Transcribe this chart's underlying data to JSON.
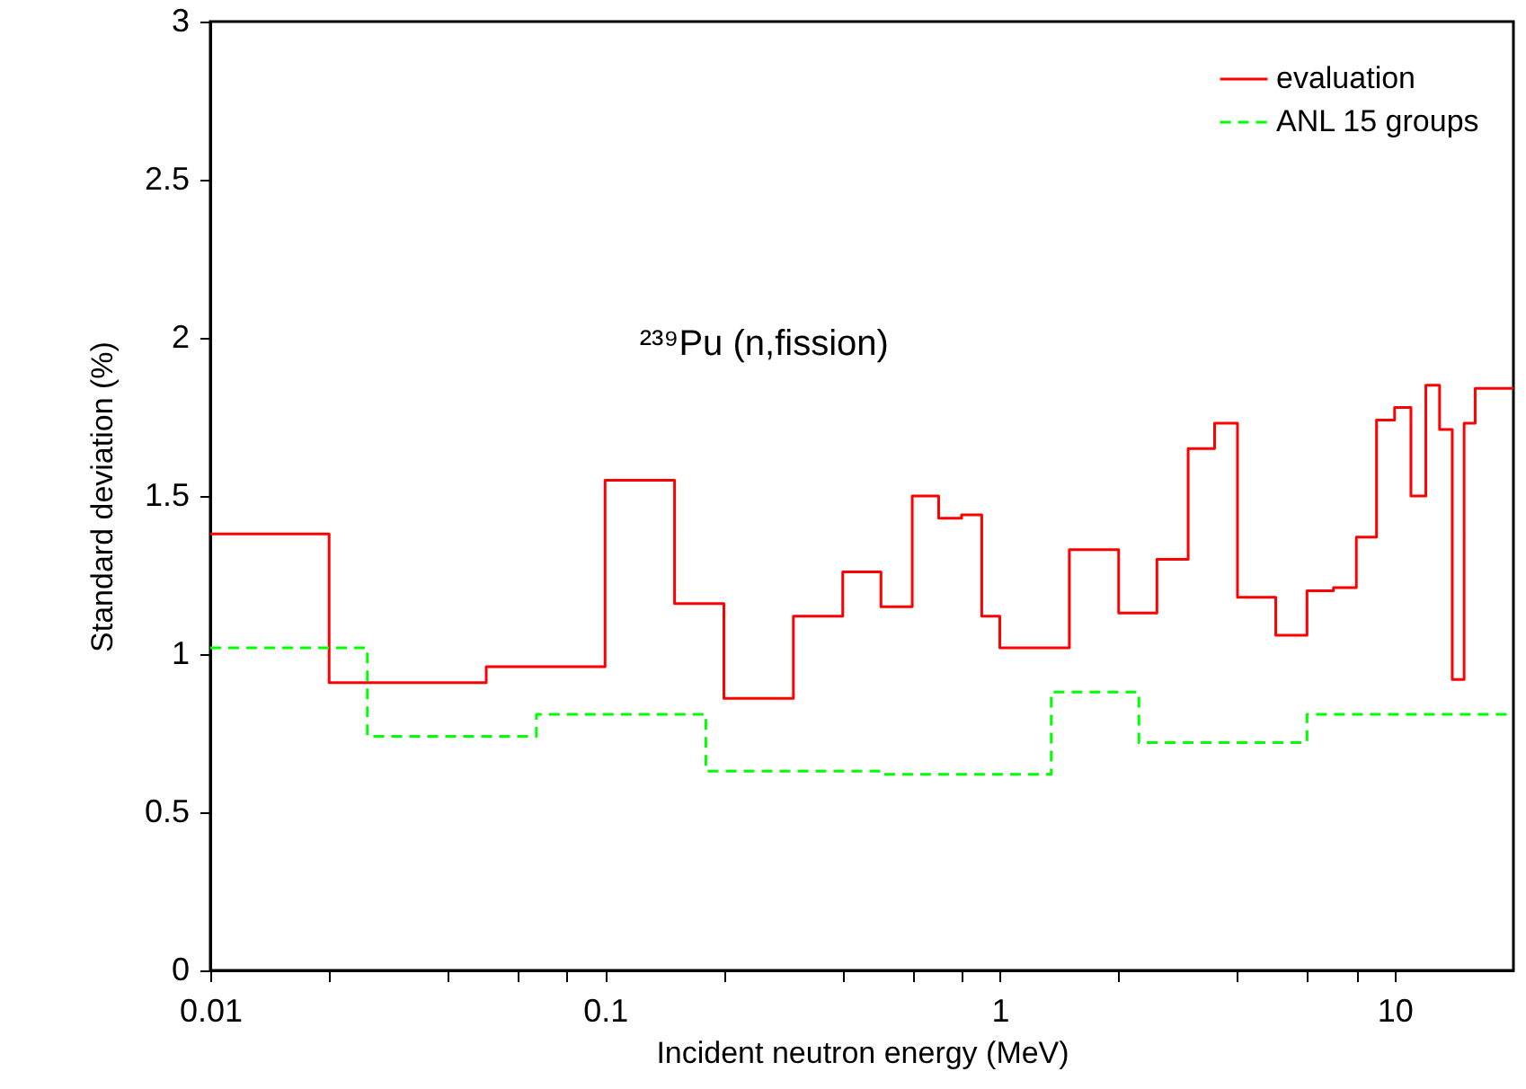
{
  "chart_data": {
    "type": "step",
    "xlabel": "Incident neutron energy (MeV)",
    "ylabel": "Standard deviation (%)",
    "annotations": [
      "²³⁹Pu (n,fission)"
    ],
    "log": "x",
    "xlim": [
      0.01,
      20
    ],
    "ylim": [
      0,
      3
    ],
    "xticks": [
      0.01,
      {
        "value": 0.02,
        "label": null
      },
      {
        "value": 0.04,
        "label": null
      },
      {
        "value": 0.06,
        "label": null
      },
      {
        "value": 0.08,
        "label": null
      },
      0.1,
      {
        "value": 0.2,
        "label": null
      },
      {
        "value": 0.4,
        "label": null
      },
      {
        "value": 0.6,
        "label": null
      },
      {
        "value": 0.8,
        "label": null
      },
      1,
      {
        "value": 2,
        "label": null
      },
      {
        "value": 4,
        "label": null
      },
      {
        "value": 6,
        "label": null
      },
      {
        "value": 8,
        "label": null
      },
      10
    ],
    "yticks": [
      0,
      0.5,
      1,
      1.5,
      2,
      2.5,
      3
    ],
    "grid": false,
    "legend": "top right",
    "marker": "none",
    "series": [
      {
        "name": "evaluation",
        "color": "#ff0000",
        "line_style": "solid",
        "x": [
          0.01,
          0.02,
          0.05,
          0.1,
          0.15,
          0.2,
          0.3,
          0.4,
          0.5,
          0.6,
          0.7,
          0.8,
          0.9,
          1.0,
          1.5,
          2.0,
          2.5,
          3.0,
          3.5,
          4.0,
          5.0,
          6.0,
          7.0,
          8.0,
          9.0,
          10,
          11,
          12,
          13,
          14,
          15,
          16,
          20
        ],
        "values": [
          1.38,
          0.91,
          0.96,
          1.55,
          1.16,
          0.86,
          1.12,
          1.26,
          1.15,
          1.5,
          1.43,
          1.44,
          1.12,
          1.02,
          1.33,
          1.13,
          1.3,
          1.65,
          1.73,
          1.18,
          1.06,
          1.2,
          1.21,
          1.37,
          1.74,
          1.78,
          1.5,
          1.85,
          1.71,
          0.92,
          1.73,
          1.84,
          1.84
        ]
      },
      {
        "name": "ANL 15 groups",
        "color": "#00ff00",
        "line_style": "dashed",
        "x": [
          0.01,
          0.025,
          0.067,
          0.18,
          0.5,
          1.35,
          2.25,
          6,
          20
        ],
        "values": [
          1.02,
          0.74,
          0.81,
          0.63,
          0.62,
          0.88,
          0.72,
          0.81,
          0.81
        ]
      }
    ]
  }
}
